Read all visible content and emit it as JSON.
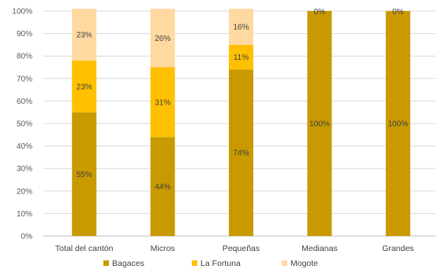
{
  "chart_data": {
    "type": "bar",
    "stacked": true,
    "percent_stacked": true,
    "categories": [
      "Total del cantón",
      "Micros",
      "Pequeñas",
      "Medianas",
      "Grandes"
    ],
    "series": [
      {
        "name": "Bagaces",
        "values": [
          55,
          44,
          74,
          100,
          100
        ],
        "labels": [
          "55%",
          "44%",
          "74%",
          "100%",
          "100%"
        ],
        "color": "#c89a00"
      },
      {
        "name": "La Fortuna",
        "values": [
          23,
          31,
          11,
          0,
          0
        ],
        "labels": [
          "23%",
          "31%",
          "11%",
          "",
          ""
        ],
        "color": "#ffc000"
      },
      {
        "name": "Mogote",
        "values": [
          23,
          26,
          16,
          0,
          0
        ],
        "labels": [
          "23%",
          "26%",
          "16%",
          "0%",
          "0%"
        ],
        "color": "#ffd9a0"
      }
    ],
    "y_ticks": [
      "0%",
      "10%",
      "20%",
      "30%",
      "40%",
      "50%",
      "60%",
      "70%",
      "80%",
      "90%",
      "100%"
    ],
    "ylim": [
      0,
      100
    ],
    "grid": true,
    "legend_position": "bottom"
  }
}
